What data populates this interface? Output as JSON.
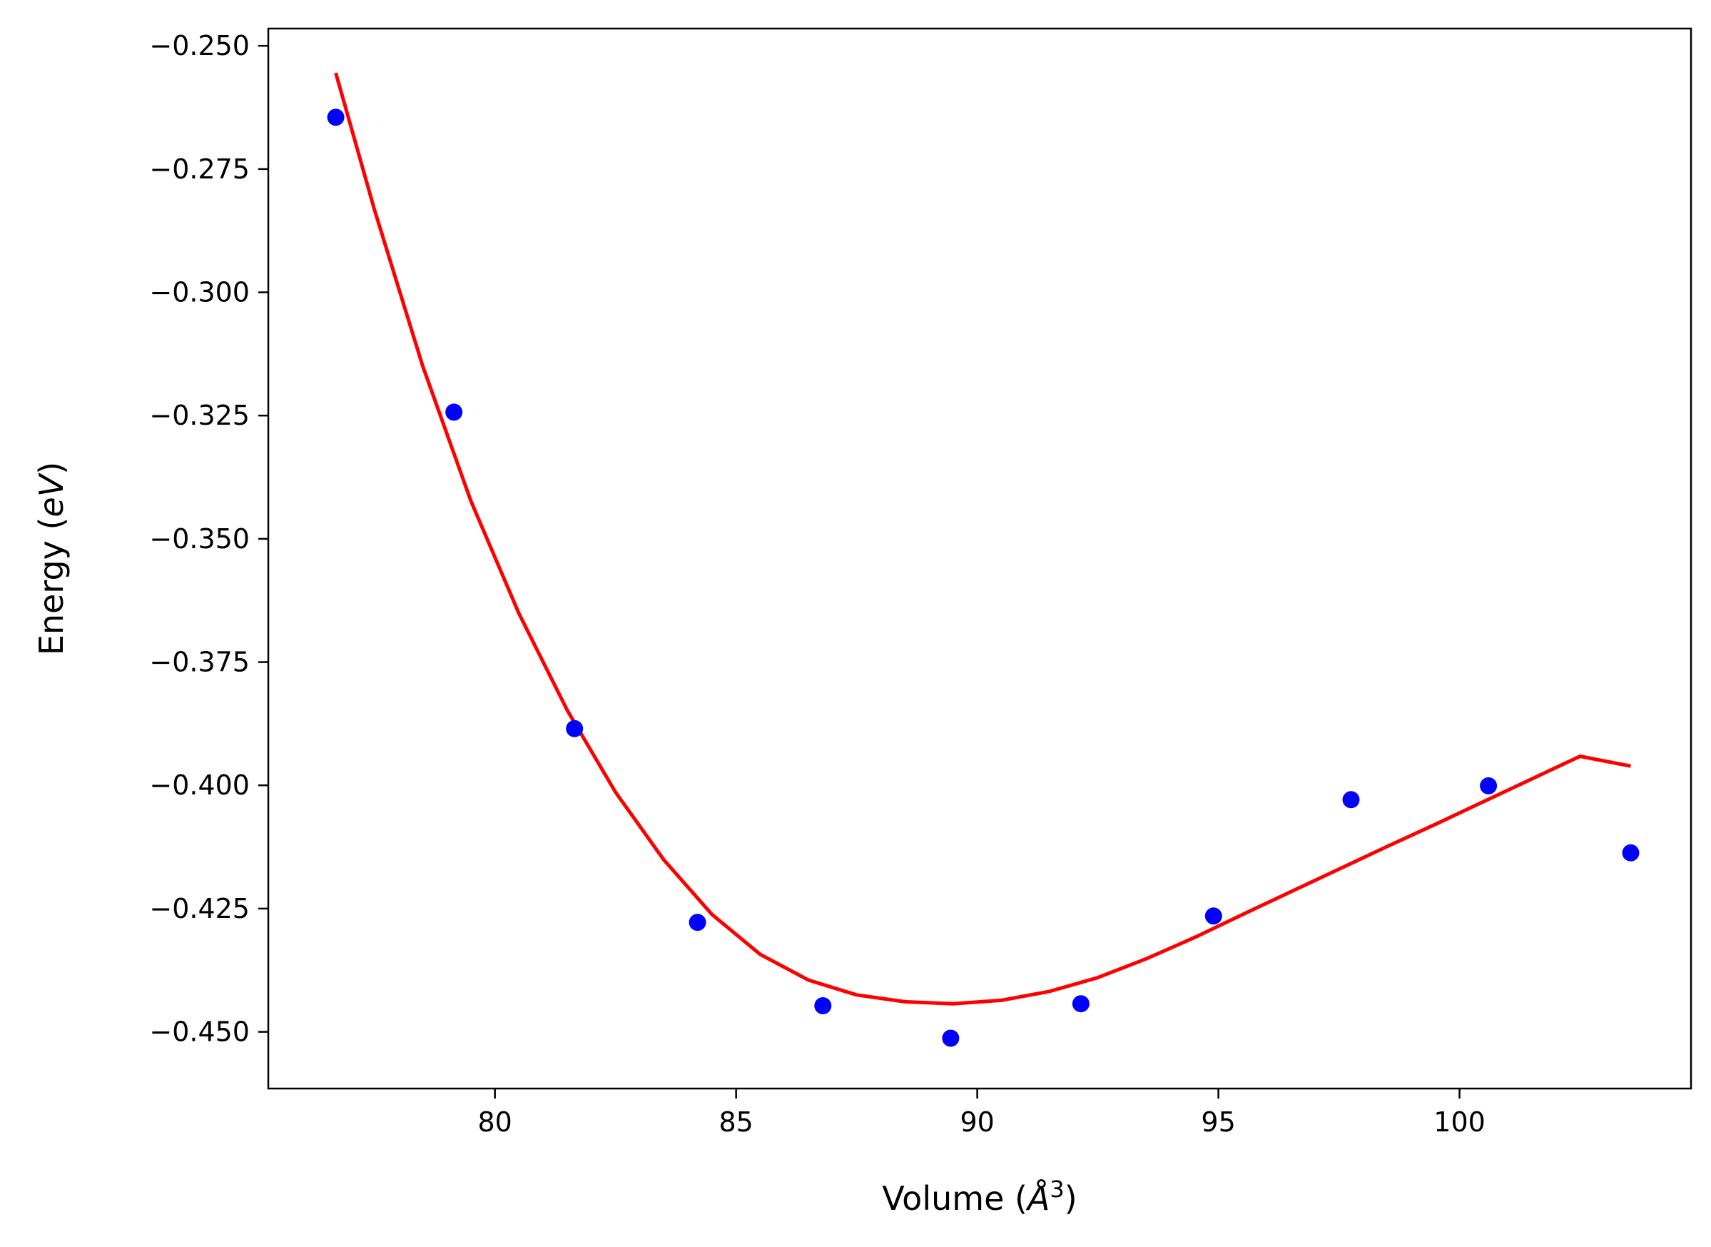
{
  "chart_data": {
    "type": "scatter",
    "title": "",
    "xlabel": "Volume (",
    "xlabel_math": "Å",
    "xlabel_sup": "3",
    "xlabel_close": ")",
    "ylabel": "Energy (",
    "ylabel_math": "eV",
    "ylabel_close": ")",
    "xlim": [
      75.3,
      104.8
    ],
    "ylim": [
      -0.4615,
      -0.2465
    ],
    "x_ticks": [
      80,
      85,
      90,
      95,
      100
    ],
    "x_tick_labels": [
      "80",
      "85",
      "90",
      "95",
      "100"
    ],
    "y_ticks": [
      -0.25,
      -0.275,
      -0.3,
      -0.325,
      -0.35,
      -0.375,
      -0.4,
      -0.425,
      -0.45
    ],
    "y_tick_labels": [
      "−0.250",
      "−0.275",
      "−0.300",
      "−0.325",
      "−0.350",
      "−0.375",
      "−0.400",
      "−0.425",
      "−0.450"
    ],
    "grid": false,
    "series": [
      {
        "kind": "scatter",
        "color": "#0000ff",
        "x": [
          76.7,
          79.15,
          81.65,
          84.2,
          86.8,
          89.45,
          92.15,
          94.9,
          97.75,
          100.6,
          103.55
        ],
        "y": [
          -0.2645,
          -0.3243,
          -0.3885,
          -0.4278,
          -0.4447,
          -0.4513,
          -0.4443,
          -0.4265,
          -0.4029,
          -0.4001,
          -0.4137
        ]
      },
      {
        "kind": "line",
        "color": "#ff0000",
        "x": [
          76.7,
          77.5,
          78.5,
          79.5,
          80.5,
          81.5,
          82.5,
          83.5,
          84.5,
          85.5,
          86.5,
          87.5,
          88.5,
          89.5,
          90.5,
          91.5,
          92.5,
          93.5,
          94.5,
          95.5,
          96.5,
          97.5,
          98.5,
          99.5,
          100.5,
          101.5,
          102.5,
          103.55
        ],
        "y": [
          -0.2555,
          -0.2832,
          -0.3149,
          -0.3423,
          -0.3652,
          -0.3848,
          -0.4014,
          -0.4151,
          -0.4262,
          -0.4343,
          -0.4395,
          -0.4425,
          -0.4439,
          -0.4443,
          -0.4436,
          -0.4418,
          -0.439,
          -0.4352,
          -0.4309,
          -0.4262,
          -0.4216,
          -0.417,
          -0.4124,
          -0.4079,
          -0.4033,
          -0.3987,
          -0.3941,
          -0.3961
        ]
      }
    ]
  }
}
